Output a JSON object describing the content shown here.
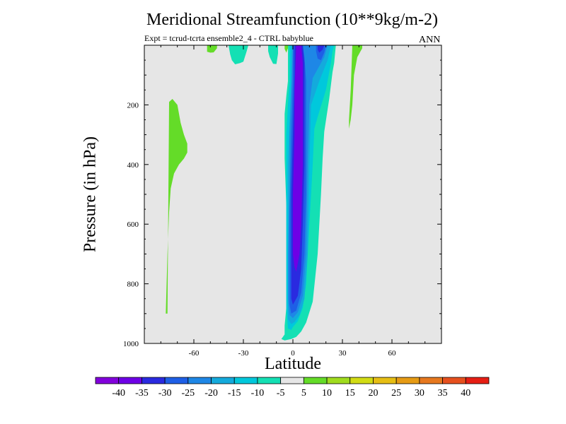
{
  "chart_data": {
    "type": "contour",
    "title": "Meridional Streamfunction (10**9kg/m-2)",
    "subtitle": "Expt = tcrud-tcrta   ensemble2_4 - CTRL babyblue",
    "season_label": "ANN",
    "xlabel": "Latitude",
    "ylabel": "Pressure (in hPa)",
    "xlim": [
      -90,
      90
    ],
    "ylim": [
      1000,
      0
    ],
    "x_ticks": [
      -60,
      -30,
      0,
      30,
      60
    ],
    "x_tick_labels": [
      "-60",
      "-30",
      "0",
      "30",
      "60"
    ],
    "y_ticks": [
      200,
      400,
      600,
      800,
      1000
    ],
    "y_tick_labels": [
      "200",
      "400",
      "600",
      "800",
      "1000"
    ],
    "y_minor_ticks": [
      100,
      300,
      500,
      700,
      900
    ],
    "background_color": "#e6e6e6",
    "contour_levels": [
      -40,
      -35,
      -30,
      -25,
      -20,
      -15,
      -10,
      -5,
      5,
      10,
      15,
      20,
      25,
      30,
      35,
      40
    ],
    "colorbar_labels": [
      "-40",
      "-35",
      "-30",
      "-25",
      "-20",
      "-15",
      "-10",
      "-5",
      "5",
      "10",
      "15",
      "20",
      "25",
      "30",
      "35",
      "40"
    ],
    "colorbar_colors": [
      "#8200dc",
      "#6e00e6",
      "#2a2ae0",
      "#1e5fe6",
      "#1e87e6",
      "#14aadc",
      "#00c8dc",
      "#14e0b4",
      "#e6e6e6",
      "#64dc28",
      "#a0dc1e",
      "#d2dc14",
      "#e6be14",
      "#e69b14",
      "#e6781e",
      "#e6501e",
      "#e61e14"
    ],
    "regions": [
      {
        "level": "5 to 10",
        "color": "#64dc28",
        "polygon": [
          [
            -76,
            900
          ],
          [
            -75,
            190
          ],
          [
            -73,
            180
          ],
          [
            -70,
            200
          ],
          [
            -68,
            260
          ],
          [
            -66,
            300
          ],
          [
            -64,
            330
          ],
          [
            -64,
            360
          ],
          [
            -66,
            380
          ],
          [
            -69,
            400
          ],
          [
            -72,
            430
          ],
          [
            -74,
            480
          ],
          [
            -75,
            560
          ],
          [
            -76,
            700
          ],
          [
            -77,
            900
          ]
        ]
      },
      {
        "level": "5 to 10",
        "color": "#64dc28",
        "polygon": [
          [
            -52,
            0
          ],
          [
            -46,
            0
          ],
          [
            -46,
            10
          ],
          [
            -48,
            24
          ],
          [
            -50,
            25
          ],
          [
            -52,
            22
          ]
        ]
      },
      {
        "level": "-10 to -5",
        "color": "#14e0b4",
        "polygon": [
          [
            -39,
            0
          ],
          [
            -27,
            0
          ],
          [
            -28,
            20
          ],
          [
            -30,
            55
          ],
          [
            -32,
            60
          ],
          [
            -35,
            64
          ],
          [
            -37,
            50
          ],
          [
            -38,
            30
          ]
        ]
      },
      {
        "level": "-10 to -5",
        "color": "#14e0b4",
        "polygon": [
          [
            -15,
            0
          ],
          [
            -9,
            0
          ],
          [
            -9,
            28
          ],
          [
            -10,
            63
          ],
          [
            -12,
            62
          ],
          [
            -14,
            40
          ],
          [
            -15,
            20
          ]
        ]
      },
      {
        "level": "5 to 10",
        "color": "#64dc28",
        "polygon": [
          [
            -5,
            0
          ],
          [
            -3,
            0
          ],
          [
            -3,
            10
          ],
          [
            -4,
            25
          ],
          [
            -5,
            12
          ]
        ]
      },
      {
        "level": "5 to 10",
        "color": "#64dc28",
        "polygon": [
          [
            36,
            0
          ],
          [
            42,
            0
          ],
          [
            42,
            10
          ],
          [
            40,
            30
          ],
          [
            39,
            40
          ],
          [
            37,
            100
          ],
          [
            36,
            200
          ],
          [
            35,
            250
          ],
          [
            34,
            280
          ],
          [
            34,
            250
          ],
          [
            35,
            150
          ]
        ]
      },
      {
        "level": "-10 to -5",
        "color": "#14e0b4",
        "polygon": [
          [
            -3,
            0
          ],
          [
            26,
            0
          ],
          [
            25,
            60
          ],
          [
            24,
            90
          ],
          [
            22,
            180
          ],
          [
            19,
            290
          ],
          [
            18,
            380
          ],
          [
            17,
            500
          ],
          [
            15,
            700
          ],
          [
            12,
            860
          ],
          [
            8,
            930
          ],
          [
            5,
            960
          ],
          [
            2,
            978
          ],
          [
            -1,
            985
          ],
          [
            -5,
            990
          ],
          [
            -7,
            985
          ],
          [
            -5,
            970
          ],
          [
            -5,
            940
          ],
          [
            -4,
            880
          ],
          [
            -4,
            700
          ],
          [
            -4,
            540
          ],
          [
            -5,
            380
          ],
          [
            -5,
            230
          ],
          [
            -4,
            170
          ],
          [
            -3,
            120
          ]
        ]
      },
      {
        "level": "-15 to -10",
        "color": "#00c8dc",
        "polygon": [
          [
            -2,
            0
          ],
          [
            25,
            0
          ],
          [
            24,
            20
          ],
          [
            23,
            60
          ],
          [
            20,
            150
          ],
          [
            15,
            240
          ],
          [
            13,
            280
          ],
          [
            12,
            400
          ],
          [
            11,
            500
          ],
          [
            10,
            600
          ],
          [
            9,
            700
          ],
          [
            8,
            800
          ],
          [
            6,
            880
          ],
          [
            3,
            925
          ],
          [
            0,
            945
          ],
          [
            -1,
            955
          ],
          [
            -3,
            950
          ],
          [
            -4,
            880
          ],
          [
            -4,
            750
          ],
          [
            -4,
            550
          ],
          [
            -4,
            420
          ],
          [
            -4,
            300
          ],
          [
            -3,
            200
          ],
          [
            -2,
            120
          ]
        ]
      },
      {
        "level": "-20 to -15",
        "color": "#14aadc",
        "polygon": [
          [
            -1,
            0
          ],
          [
            23,
            0
          ],
          [
            21,
            50
          ],
          [
            16,
            120
          ],
          [
            11,
            200
          ],
          [
            10,
            400
          ],
          [
            9,
            700
          ],
          [
            7,
            850
          ],
          [
            4,
            905
          ],
          [
            1,
            928
          ],
          [
            -1,
            935
          ],
          [
            -3,
            918
          ],
          [
            -3,
            800
          ],
          [
            -3,
            600
          ],
          [
            -3,
            400
          ],
          [
            -2,
            250
          ],
          [
            -1,
            120
          ]
        ]
      },
      {
        "level": "-25 to -20",
        "color": "#1e87e6",
        "polygon": [
          [
            0,
            0
          ],
          [
            21,
            0
          ],
          [
            19,
            40
          ],
          [
            12,
            110
          ],
          [
            10,
            200
          ],
          [
            9,
            400
          ],
          [
            8,
            700
          ],
          [
            6,
            840
          ],
          [
            3,
            895
          ],
          [
            0,
            915
          ],
          [
            -2,
            905
          ],
          [
            -3,
            850
          ],
          [
            -3,
            700
          ],
          [
            -2,
            500
          ],
          [
            -2,
            300
          ],
          [
            -1,
            150
          ]
        ]
      },
      {
        "level": "-30 to -25",
        "color": "#1e5fe6",
        "polygon": [
          [
            0,
            0
          ],
          [
            6,
            0
          ],
          [
            7,
            40
          ],
          [
            8,
            120
          ],
          [
            8,
            300
          ],
          [
            8,
            500
          ],
          [
            7,
            700
          ],
          [
            5,
            830
          ],
          [
            2,
            890
          ],
          [
            -1,
            900
          ],
          [
            -2,
            870
          ],
          [
            -2,
            750
          ],
          [
            -2,
            550
          ],
          [
            -1,
            300
          ],
          [
            0,
            120
          ]
        ]
      },
      {
        "level": "-30 to -25",
        "color": "#1e5fe6",
        "polygon": [
          [
            14,
            0
          ],
          [
            20,
            0
          ],
          [
            19,
            25
          ],
          [
            17,
            50
          ],
          [
            15,
            45
          ],
          [
            14,
            20
          ]
        ]
      },
      {
        "level": "-35 to -30",
        "color": "#2a2ae0",
        "polygon": [
          [
            1,
            0
          ],
          [
            6,
            0
          ],
          [
            7,
            60
          ],
          [
            7,
            200
          ],
          [
            7,
            400
          ],
          [
            6,
            600
          ],
          [
            5,
            750
          ],
          [
            3,
            840
          ],
          [
            0,
            870
          ],
          [
            -1,
            850
          ],
          [
            -1,
            700
          ],
          [
            -1,
            500
          ],
          [
            0,
            300
          ],
          [
            1,
            100
          ]
        ]
      },
      {
        "level": "-35 to -30",
        "color": "#2a2ae0",
        "polygon": [
          [
            15,
            0
          ],
          [
            19,
            0
          ],
          [
            18,
            15
          ],
          [
            16,
            25
          ],
          [
            15,
            15
          ]
        ]
      },
      {
        "level": "-40 to -35",
        "color": "#6e00e6",
        "polygon": [
          [
            2,
            0
          ],
          [
            5,
            0
          ],
          [
            6,
            60
          ],
          [
            6,
            200
          ],
          [
            6,
            400
          ],
          [
            5,
            600
          ],
          [
            4,
            700
          ],
          [
            2,
            760
          ],
          [
            1,
            745
          ],
          [
            0,
            700
          ],
          [
            0,
            500
          ],
          [
            1,
            300
          ],
          [
            1,
            150
          ]
        ]
      }
    ]
  }
}
